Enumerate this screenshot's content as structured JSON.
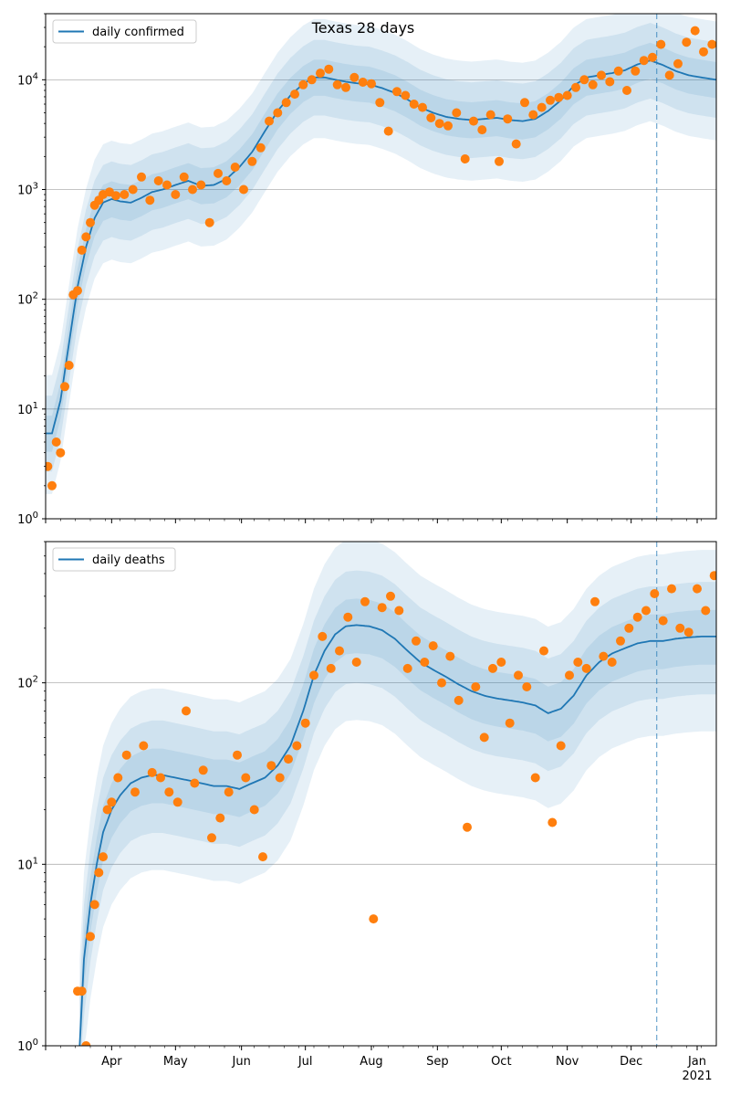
{
  "figure": {
    "title": "Texas 28 days",
    "x_tick_labels": [
      "Apr",
      "May",
      "Jun",
      "Jul",
      "Aug",
      "Sep",
      "Oct",
      "Nov",
      "Dec",
      "Jan"
    ],
    "year_label": "2021"
  },
  "colors": {
    "model_line": "#1f77b4",
    "observed_points": "#ff7f0e",
    "band": "#1f77b4",
    "grid": "#b0b0b0",
    "forecast_marker": "#1f77b4"
  },
  "chart_data": [
    {
      "type": "line",
      "title": "Texas 28 days",
      "legend": "top-left",
      "legend_label": "daily confirmed",
      "y_scale": "log",
      "ylim": [
        1,
        40000
      ],
      "y_tick_values": [
        1,
        10,
        100,
        1000,
        10000
      ],
      "y_tick_labels": [
        "10^0",
        "10^1",
        "10^2",
        "10^3",
        "10^4"
      ],
      "xlim": [
        "2020-03-01",
        "2021-01-10"
      ],
      "grid": "y",
      "forecast_start": "2020-12-13",
      "model_series": {
        "dates": [
          "2020-03-01",
          "2020-03-04",
          "2020-03-08",
          "2020-03-12",
          "2020-03-16",
          "2020-03-20",
          "2020-03-24",
          "2020-03-28",
          "2020-04-01",
          "2020-04-05",
          "2020-04-10",
          "2020-04-15",
          "2020-04-20",
          "2020-04-25",
          "2020-05-01",
          "2020-05-07",
          "2020-05-13",
          "2020-05-19",
          "2020-05-25",
          "2020-05-31",
          "2020-06-06",
          "2020-06-12",
          "2020-06-18",
          "2020-06-24",
          "2020-06-30",
          "2020-07-05",
          "2020-07-10",
          "2020-07-15",
          "2020-07-20",
          "2020-07-25",
          "2020-07-31",
          "2020-08-06",
          "2020-08-12",
          "2020-08-18",
          "2020-08-24",
          "2020-08-30",
          "2020-09-05",
          "2020-09-11",
          "2020-09-17",
          "2020-09-23",
          "2020-09-29",
          "2020-10-05",
          "2020-10-11",
          "2020-10-17",
          "2020-10-23",
          "2020-10-29",
          "2020-11-04",
          "2020-11-10",
          "2020-11-16",
          "2020-11-22",
          "2020-11-28",
          "2020-12-04",
          "2020-12-10",
          "2020-12-16",
          "2020-12-22",
          "2020-12-28",
          "2021-01-03",
          "2021-01-10"
        ],
        "values": [
          6,
          6,
          12,
          40,
          130,
          300,
          550,
          760,
          820,
          780,
          760,
          840,
          950,
          1000,
          1100,
          1200,
          1080,
          1100,
          1250,
          1600,
          2200,
          3400,
          5200,
          7200,
          9200,
          10500,
          10500,
          10000,
          9600,
          9300,
          9100,
          8400,
          7600,
          6600,
          5600,
          5000,
          4600,
          4400,
          4300,
          4400,
          4500,
          4300,
          4200,
          4400,
          5200,
          6500,
          8800,
          10500,
          11000,
          11500,
          12200,
          13800,
          15000,
          13600,
          12000,
          11000,
          10500,
          10000
        ]
      },
      "observed": {
        "dates": [
          "2020-03-02",
          "2020-03-04",
          "2020-03-06",
          "2020-03-08",
          "2020-03-10",
          "2020-03-12",
          "2020-03-14",
          "2020-03-16",
          "2020-03-18",
          "2020-03-20",
          "2020-03-22",
          "2020-03-24",
          "2020-03-26",
          "2020-03-28",
          "2020-03-31",
          "2020-04-03",
          "2020-04-07",
          "2020-04-11",
          "2020-04-15",
          "2020-04-19",
          "2020-04-23",
          "2020-04-27",
          "2020-05-01",
          "2020-05-05",
          "2020-05-09",
          "2020-05-13",
          "2020-05-17",
          "2020-05-21",
          "2020-05-25",
          "2020-05-29",
          "2020-06-02",
          "2020-06-06",
          "2020-06-10",
          "2020-06-14",
          "2020-06-18",
          "2020-06-22",
          "2020-06-26",
          "2020-06-30",
          "2020-07-04",
          "2020-07-08",
          "2020-07-12",
          "2020-07-16",
          "2020-07-20",
          "2020-07-24",
          "2020-07-28",
          "2020-08-01",
          "2020-08-05",
          "2020-08-09",
          "2020-08-13",
          "2020-08-17",
          "2020-08-21",
          "2020-08-25",
          "2020-08-29",
          "2020-09-02",
          "2020-09-06",
          "2020-09-10",
          "2020-09-14",
          "2020-09-18",
          "2020-09-22",
          "2020-09-26",
          "2020-09-30",
          "2020-10-04",
          "2020-10-08",
          "2020-10-12",
          "2020-10-16",
          "2020-10-20",
          "2020-10-24",
          "2020-10-28",
          "2020-11-01",
          "2020-11-05",
          "2020-11-09",
          "2020-11-13",
          "2020-11-17",
          "2020-11-21",
          "2020-11-25",
          "2020-11-29",
          "2020-12-03",
          "2020-12-07",
          "2020-12-11",
          "2020-12-15",
          "2020-12-19",
          "2020-12-23",
          "2020-12-27",
          "2020-12-31",
          "2021-01-04",
          "2021-01-08"
        ],
        "values": [
          3,
          2,
          5,
          4,
          16,
          25,
          110,
          120,
          280,
          370,
          500,
          720,
          800,
          900,
          950,
          880,
          900,
          1000,
          1300,
          800,
          1200,
          1100,
          900,
          1300,
          1000,
          1100,
          500,
          1400,
          1200,
          1600,
          1000,
          1800,
          2400,
          4200,
          5000,
          6200,
          7400,
          9000,
          10000,
          11500,
          12500,
          9000,
          8500,
          10500,
          9500,
          9200,
          6200,
          3400,
          7800,
          7200,
          6000,
          5600,
          4500,
          4000,
          3800,
          5000,
          1900,
          4200,
          3500,
          4800,
          1800,
          4400,
          2600,
          6200,
          4800,
          5600,
          6500,
          6900,
          7200,
          8500,
          10000,
          9000,
          11000,
          9600,
          12000,
          8000,
          12000,
          15000,
          16000,
          21000,
          11000,
          14000,
          22000,
          28000,
          18000,
          21000
        ]
      }
    },
    {
      "type": "line",
      "legend": "top-left",
      "legend_label": "daily deaths",
      "y_scale": "log",
      "ylim": [
        1,
        600
      ],
      "y_tick_values": [
        1,
        10,
        100
      ],
      "y_tick_labels": [
        "10^0",
        "10^1",
        "10^2"
      ],
      "xlim": [
        "2020-03-01",
        "2021-01-10"
      ],
      "grid": "y",
      "forecast_start": "2020-12-13",
      "model_series": {
        "dates": [
          "2020-03-17",
          "2020-03-19",
          "2020-03-22",
          "2020-03-25",
          "2020-03-28",
          "2020-04-01",
          "2020-04-05",
          "2020-04-10",
          "2020-04-15",
          "2020-04-20",
          "2020-04-25",
          "2020-05-01",
          "2020-05-07",
          "2020-05-13",
          "2020-05-19",
          "2020-05-25",
          "2020-05-31",
          "2020-06-06",
          "2020-06-12",
          "2020-06-18",
          "2020-06-24",
          "2020-06-30",
          "2020-07-05",
          "2020-07-10",
          "2020-07-15",
          "2020-07-20",
          "2020-07-25",
          "2020-07-31",
          "2020-08-06",
          "2020-08-12",
          "2020-08-18",
          "2020-08-24",
          "2020-08-30",
          "2020-09-05",
          "2020-09-11",
          "2020-09-17",
          "2020-09-23",
          "2020-09-29",
          "2020-10-05",
          "2020-10-11",
          "2020-10-17",
          "2020-10-23",
          "2020-10-29",
          "2020-11-04",
          "2020-11-10",
          "2020-11-16",
          "2020-11-22",
          "2020-11-28",
          "2020-12-04",
          "2020-12-10",
          "2020-12-16",
          "2020-12-22",
          "2020-12-28",
          "2021-01-03",
          "2021-01-10"
        ],
        "values": [
          1,
          3,
          6,
          10,
          15,
          20,
          24,
          28,
          30,
          31,
          31,
          30,
          29,
          28,
          27,
          27,
          26,
          28,
          30,
          35,
          45,
          70,
          110,
          150,
          185,
          205,
          208,
          205,
          195,
          175,
          150,
          130,
          118,
          108,
          98,
          90,
          85,
          82,
          80,
          78,
          75,
          68,
          72,
          85,
          110,
          130,
          145,
          155,
          165,
          170,
          170,
          175,
          178,
          180,
          180
        ]
      },
      "observed": {
        "dates": [
          "2020-03-16",
          "2020-03-18",
          "2020-03-20",
          "2020-03-22",
          "2020-03-24",
          "2020-03-26",
          "2020-03-28",
          "2020-03-30",
          "2020-04-01",
          "2020-04-04",
          "2020-04-08",
          "2020-04-12",
          "2020-04-16",
          "2020-04-20",
          "2020-04-24",
          "2020-04-28",
          "2020-05-02",
          "2020-05-06",
          "2020-05-10",
          "2020-05-14",
          "2020-05-18",
          "2020-05-22",
          "2020-05-26",
          "2020-05-30",
          "2020-06-03",
          "2020-06-07",
          "2020-06-11",
          "2020-06-15",
          "2020-06-19",
          "2020-06-23",
          "2020-06-27",
          "2020-07-01",
          "2020-07-05",
          "2020-07-09",
          "2020-07-13",
          "2020-07-17",
          "2020-07-21",
          "2020-07-25",
          "2020-07-29",
          "2020-08-02",
          "2020-08-06",
          "2020-08-10",
          "2020-08-14",
          "2020-08-18",
          "2020-08-22",
          "2020-08-26",
          "2020-08-30",
          "2020-09-03",
          "2020-09-07",
          "2020-09-11",
          "2020-09-15",
          "2020-09-19",
          "2020-09-23",
          "2020-09-27",
          "2020-10-01",
          "2020-10-05",
          "2020-10-09",
          "2020-10-13",
          "2020-10-17",
          "2020-10-21",
          "2020-10-25",
          "2020-10-29",
          "2020-11-02",
          "2020-11-06",
          "2020-11-10",
          "2020-11-14",
          "2020-11-18",
          "2020-11-22",
          "2020-11-26",
          "2020-11-30",
          "2020-12-04",
          "2020-12-08",
          "2020-12-12",
          "2020-12-16",
          "2020-12-20",
          "2020-12-24",
          "2020-12-28",
          "2021-01-01",
          "2021-01-05",
          "2021-01-09"
        ],
        "values": [
          2,
          2,
          1,
          4,
          6,
          9,
          11,
          20,
          22,
          30,
          40,
          25,
          45,
          32,
          30,
          25,
          22,
          70,
          28,
          33,
          14,
          18,
          25,
          40,
          30,
          20,
          11,
          35,
          30,
          38,
          45,
          60,
          110,
          180,
          120,
          150,
          230,
          130,
          280,
          5,
          260,
          300,
          250,
          120,
          170,
          130,
          160,
          100,
          140,
          80,
          16,
          95,
          50,
          120,
          130,
          60,
          110,
          95,
          30,
          150,
          17,
          45,
          110,
          130,
          120,
          280,
          140,
          130,
          170,
          200,
          230,
          250,
          310,
          220,
          330,
          200,
          190,
          330,
          250,
          390
        ]
      }
    }
  ]
}
